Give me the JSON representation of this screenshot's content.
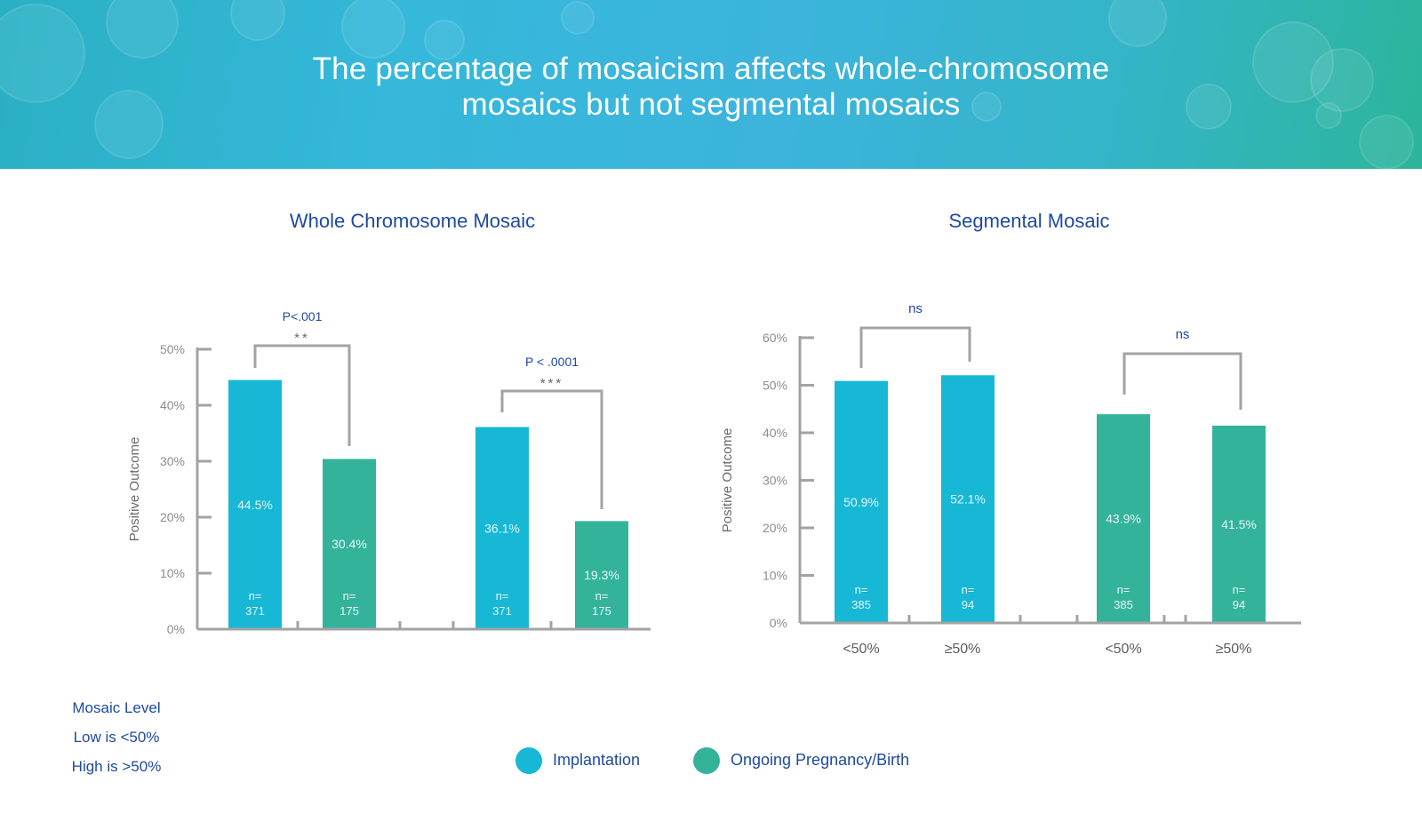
{
  "title": "The percentage of mosaicism affects whole-chromosome mosaics but not segmental mosaics",
  "colors": {
    "implantation": "#17b7d6",
    "ongoing": "#34b39b",
    "axis": "#a3a3a3",
    "text_blue": "#1f4aa0",
    "tick_text": "#8d8d8d",
    "bar_label": "#e6f7fa"
  },
  "chart_data": [
    {
      "type": "bar",
      "title": "Whole Chromosome Mosaic",
      "ylabel": "Positive Outcome",
      "xlabel": "",
      "ylim": [
        0,
        50
      ],
      "ytick_labels": [
        "0%",
        "10%",
        "20%",
        "30%",
        "40%",
        "50%"
      ],
      "categories": [
        "",
        ""
      ],
      "bars": [
        {
          "series": "Implantation",
          "value": 44.5,
          "label": "44.5%",
          "n_label": "n=",
          "n": "371"
        },
        {
          "series": "Ongoing Pregnancy/Birth",
          "value": 30.4,
          "label": "30.4%",
          "n_label": "n=",
          "n": "175"
        },
        {
          "series": "Implantation",
          "value": 36.1,
          "label": "36.1%",
          "n_label": "n=",
          "n": "371"
        },
        {
          "series": "Ongoing Pregnancy/Birth",
          "value": 19.3,
          "label": "19.3%",
          "n_label": "n=",
          "n": "175"
        }
      ],
      "significance": [
        {
          "pval": "P<.001",
          "stars": "**"
        },
        {
          "pval": "P < .0001",
          "stars": "***"
        }
      ]
    },
    {
      "type": "bar",
      "title": "Segmental Mosaic",
      "ylabel": "Positive Outcome",
      "xlabel": "",
      "ylim": [
        0,
        60
      ],
      "ytick_labels": [
        "0%",
        "10%",
        "20%",
        "30%",
        "40%",
        "50%",
        "60%"
      ],
      "categories": [
        "<50%",
        "≥50%",
        "<50%",
        "≥50%"
      ],
      "bars": [
        {
          "series": "Implantation",
          "value": 50.9,
          "label": "50.9%",
          "n_label": "n=",
          "n": "385"
        },
        {
          "series": "Implantation",
          "value": 52.1,
          "label": "52.1%",
          "n_label": "n=",
          "n": "94"
        },
        {
          "series": "Ongoing Pregnancy/Birth",
          "value": 43.9,
          "label": "43.9%",
          "n_label": "n=",
          "n": "385"
        },
        {
          "series": "Ongoing Pregnancy/Birth",
          "value": 41.5,
          "label": "41.5%",
          "n_label": "n=",
          "n": "94"
        }
      ],
      "significance": [
        {
          "pval": "",
          "stars": "ns"
        },
        {
          "pval": "",
          "stars": "ns"
        }
      ]
    }
  ],
  "legend": [
    {
      "label": "Implantation",
      "color": "#17b7d6"
    },
    {
      "label": "Ongoing Pregnancy/Birth",
      "color": "#34b39b"
    }
  ],
  "mosaic_key": {
    "heading": "Mosaic Level",
    "low": "Low is <50%",
    "high": "High is >50%"
  }
}
